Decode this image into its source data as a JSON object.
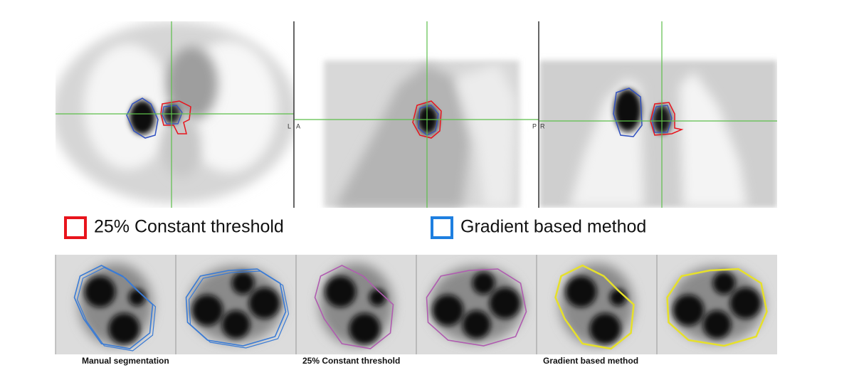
{
  "orientation_labels": [
    "L",
    "A",
    "P",
    "R"
  ],
  "legend": {
    "items": [
      {
        "label": "25% Constant threshold",
        "color": "#e8141c"
      },
      {
        "label": "Gradient based method",
        "color": "#1e7fe0"
      }
    ]
  },
  "captions": [
    "Manual segmentation",
    "25% Constant threshold",
    "Gradient based method"
  ]
}
